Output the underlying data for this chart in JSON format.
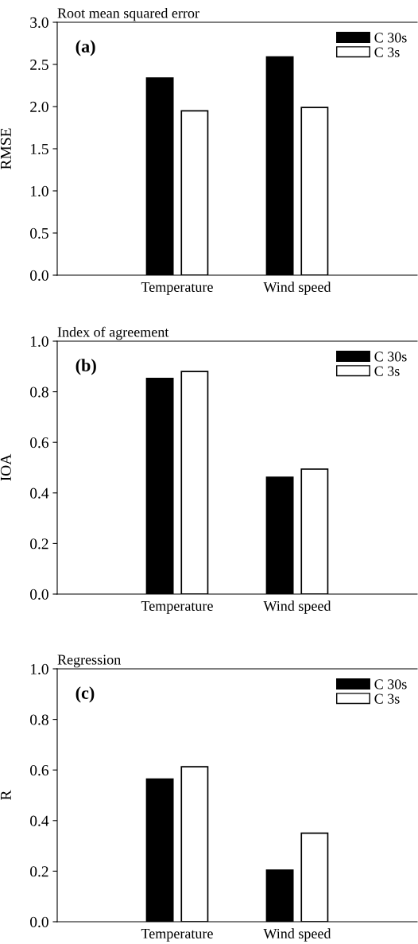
{
  "chart_data": [
    {
      "type": "bar",
      "title": "Root mean squared error",
      "ylabel": "RMSE",
      "categories": [
        "Temperature",
        "Wind speed"
      ],
      "series": [
        {
          "name": "C 30s",
          "color": "#000000",
          "values": [
            2.34,
            2.59
          ]
        },
        {
          "name": "C 3s",
          "color": "#ffffff",
          "values": [
            1.95,
            1.99
          ]
        }
      ],
      "ylim": [
        0,
        3.0
      ],
      "yticks": [
        {
          "value": 0,
          "label": "0.0"
        },
        {
          "value": 0.5,
          "label": "0.5"
        },
        {
          "value": 1.0,
          "label": "1.0"
        },
        {
          "value": 1.5,
          "label": "1.5"
        },
        {
          "value": 2.0,
          "label": "2.0"
        },
        {
          "value": 2.5,
          "label": "2.5"
        },
        {
          "value": 3.0,
          "label": "3.0"
        }
      ],
      "annotations": [
        "(a)"
      ],
      "legend": "top right",
      "grid": false
    },
    {
      "type": "bar",
      "title": "Index of agreement",
      "ylabel": "IOA",
      "categories": [
        "Temperature",
        "Wind speed"
      ],
      "series": [
        {
          "name": "C 30s",
          "color": "#000000",
          "values": [
            0.853,
            0.462
          ]
        },
        {
          "name": "C 3s",
          "color": "#ffffff",
          "values": [
            0.88,
            0.494
          ]
        }
      ],
      "ylim": [
        0,
        1.0
      ],
      "yticks": [
        {
          "value": 0,
          "label": "0.0"
        },
        {
          "value": 0.2,
          "label": "0.2"
        },
        {
          "value": 0.4,
          "label": "0.4"
        },
        {
          "value": 0.6,
          "label": "0.6"
        },
        {
          "value": 0.8,
          "label": "0.8"
        },
        {
          "value": 1.0,
          "label": "1.0"
        }
      ],
      "annotations": [
        "(b)"
      ],
      "legend": "top right",
      "grid": false
    },
    {
      "type": "bar",
      "title": "Regression",
      "ylabel": "R",
      "categories": [
        "Temperature",
        "Wind speed"
      ],
      "series": [
        {
          "name": "C 30s",
          "color": "#000000",
          "values": [
            0.564,
            0.204
          ]
        },
        {
          "name": "C 3s",
          "color": "#ffffff",
          "values": [
            0.613,
            0.35
          ]
        }
      ],
      "ylim": [
        0,
        1.0
      ],
      "yticks": [
        {
          "value": 0,
          "label": "0.0"
        },
        {
          "value": 0.2,
          "label": "0.2"
        },
        {
          "value": 0.4,
          "label": "0.4"
        },
        {
          "value": 0.6,
          "label": "0.6"
        },
        {
          "value": 0.8,
          "label": "0.8"
        },
        {
          "value": 1.0,
          "label": "1.0"
        }
      ],
      "annotations": [
        "(c)"
      ],
      "legend": "top right",
      "grid": false
    }
  ]
}
